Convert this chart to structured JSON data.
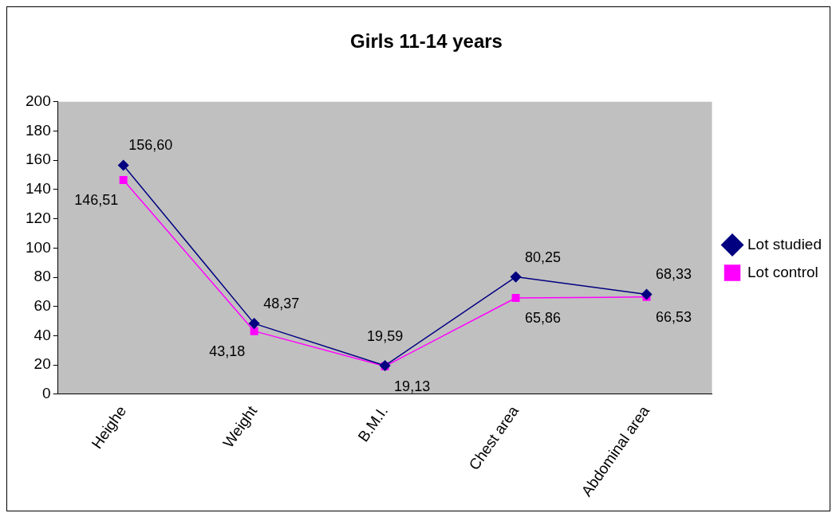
{
  "chart_data": {
    "type": "line",
    "title": "Girls 11-14 years",
    "categories": [
      "Heighe",
      "Weight",
      "B.M.I.",
      "Chest area",
      "Abdominal area"
    ],
    "series": [
      {
        "name": "Lot studied",
        "color": "#000080",
        "marker": "diamond",
        "values": [
          156.6,
          48.37,
          19.59,
          80.25,
          68.33
        ],
        "value_labels": [
          "156,60",
          "48,37",
          "19,59",
          "80,25",
          "68,33"
        ]
      },
      {
        "name": "Lot control",
        "color": "#ff00ff",
        "marker": "square",
        "values": [
          146.51,
          43.18,
          19.13,
          65.86,
          66.53
        ],
        "value_labels": [
          "146,51",
          "43,18",
          "19,13",
          "65,86",
          "66,53"
        ]
      }
    ],
    "ylim": [
      0,
      200
    ],
    "yticks": [
      0,
      20,
      40,
      60,
      80,
      100,
      120,
      140,
      160,
      180,
      200
    ],
    "grid": false,
    "legend": "right"
  }
}
